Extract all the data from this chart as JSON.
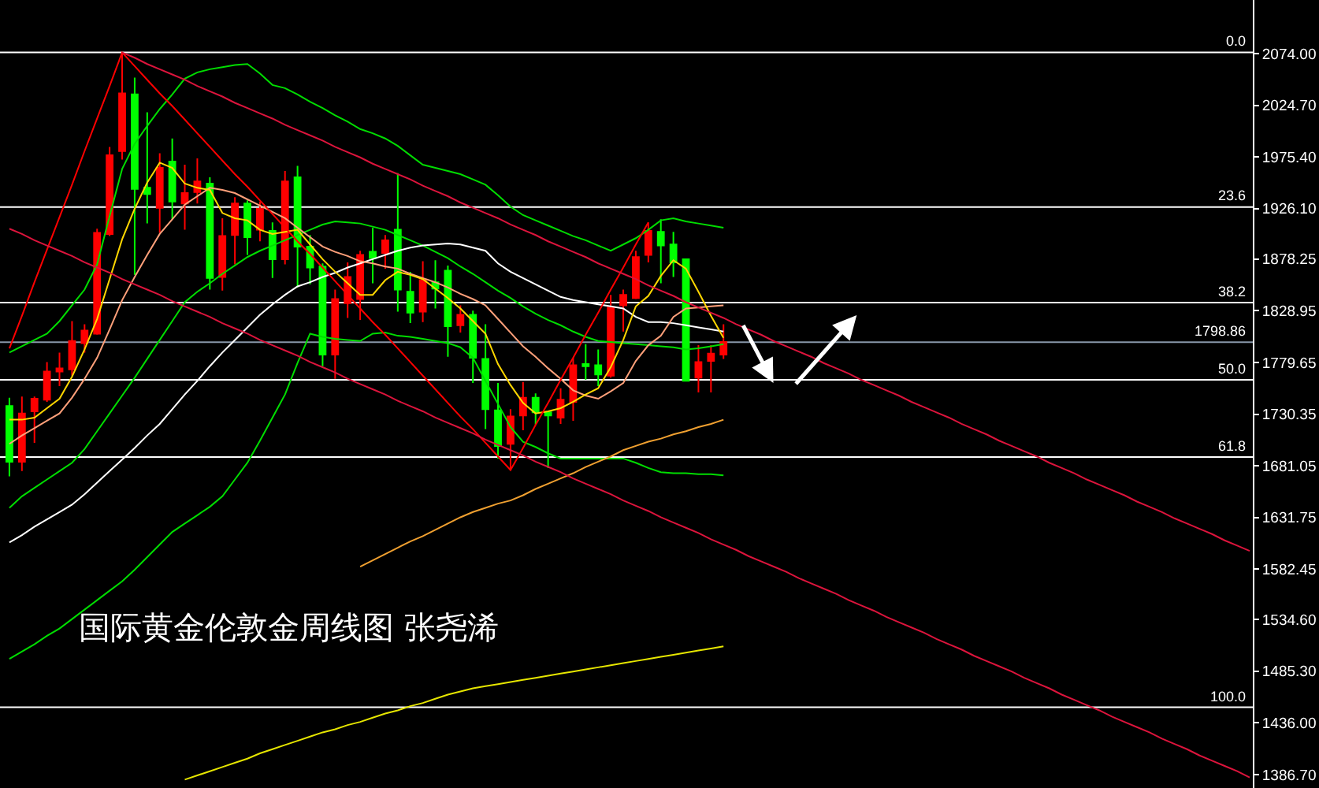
{
  "chart_data": {
    "type": "candlestick",
    "annotations": [
      "国际黄金伦敦金周线图 张尧浠",
      {
        "text": "0.0",
        "y": 2075
      },
      {
        "text": "23.6",
        "y": 1927.7
      },
      {
        "text": "38.2",
        "y": 1836.6
      },
      {
        "text": "50.0",
        "y": 1763
      },
      {
        "text": "61.8",
        "y": 1689.4
      },
      {
        "text": "100.0",
        "y": 1451
      }
    ],
    "categories": [
      null,
      null,
      null,
      null,
      null,
      null,
      null,
      null,
      null,
      null,
      null,
      null,
      null,
      null,
      null,
      null,
      null,
      null,
      null,
      null,
      null,
      null,
      null,
      null,
      null,
      null,
      null,
      null,
      null,
      null,
      null,
      null,
      null,
      null,
      null,
      null,
      null,
      null,
      null,
      null,
      null,
      null,
      null,
      null,
      null,
      null,
      null,
      null,
      null,
      null,
      null,
      null,
      null,
      null,
      null,
      null,
      null,
      null,
      null,
      null,
      null,
      null,
      null,
      null,
      null,
      null,
      null,
      null,
      null,
      null,
      null,
      null,
      null,
      null,
      null,
      null,
      null,
      null,
      null,
      null,
      null,
      null,
      null,
      null,
      null,
      null,
      null,
      null,
      null,
      null,
      null,
      null,
      null,
      null,
      null,
      null,
      null,
      null,
      null,
      null
    ],
    "ohlc": [
      [
        1738,
        1746,
        1671,
        1685
      ],
      [
        1685,
        1747,
        1676,
        1731
      ],
      [
        1733,
        1747,
        1703,
        1745
      ],
      [
        1744,
        1780,
        1742,
        1771
      ],
      [
        1771,
        1789,
        1757,
        1774
      ],
      [
        1773,
        1819,
        1767,
        1800
      ],
      [
        1798,
        1816,
        1789,
        1810
      ],
      [
        1807,
        1907,
        1806,
        1903
      ],
      [
        1902,
        1985,
        1900,
        1977
      ],
      [
        1981,
        2075,
        1973,
        2036
      ],
      [
        2035,
        2051,
        1863,
        1945
      ],
      [
        1946,
        2018,
        1912,
        1940
      ],
      [
        1927,
        1979,
        1903,
        1965
      ],
      [
        1971,
        1993,
        1916,
        1933
      ],
      [
        1931,
        1968,
        1906,
        1941
      ],
      [
        1942,
        1974,
        1931,
        1952
      ],
      [
        1950,
        1956,
        1849,
        1860
      ],
      [
        1861,
        1917,
        1848,
        1900
      ],
      [
        1901,
        1937,
        1873,
        1931
      ],
      [
        1931,
        1934,
        1882,
        1899
      ],
      [
        1906,
        1933,
        1895,
        1926
      ],
      [
        1905,
        1913,
        1860,
        1878
      ],
      [
        1878,
        1962,
        1873,
        1952
      ],
      [
        1956,
        1967,
        1851,
        1890
      ],
      [
        1890,
        1901,
        1854,
        1870
      ],
      [
        1871,
        1874,
        1776,
        1787
      ],
      [
        1787,
        1849,
        1764,
        1840
      ],
      [
        1836,
        1875,
        1822,
        1861
      ],
      [
        1840,
        1886,
        1820,
        1882
      ],
      [
        1885,
        1908,
        1855,
        1879
      ],
      [
        1884,
        1901,
        1869,
        1896
      ],
      [
        1906,
        1960,
        1828,
        1849
      ],
      [
        1847,
        1866,
        1817,
        1827
      ],
      [
        1828,
        1876,
        1818,
        1858
      ],
      [
        1856,
        1877,
        1831,
        1850
      ],
      [
        1867,
        1872,
        1785,
        1814
      ],
      [
        1815,
        1834,
        1808,
        1825
      ],
      [
        1825,
        1829,
        1760,
        1784
      ],
      [
        1783,
        1816,
        1716,
        1735
      ],
      [
        1734,
        1760,
        1688,
        1700
      ],
      [
        1702,
        1735,
        1677,
        1728
      ],
      [
        1729,
        1761,
        1715,
        1746
      ],
      [
        1746,
        1750,
        1720,
        1732
      ],
      [
        1732,
        1733,
        1679,
        1729
      ],
      [
        1727,
        1755,
        1721,
        1744
      ],
      [
        1742,
        1784,
        1724,
        1777
      ],
      [
        1778,
        1797,
        1763,
        1776
      ],
      [
        1777,
        1792,
        1757,
        1768
      ],
      [
        1767,
        1844,
        1765,
        1832
      ],
      [
        1834,
        1849,
        1809,
        1844
      ],
      [
        1841,
        1886,
        1840,
        1880
      ],
      [
        1882,
        1913,
        1875,
        1905
      ],
      [
        1904,
        1916,
        1855,
        1891
      ],
      [
        1892,
        1904,
        1861,
        1875
      ],
      [
        1878,
        1878,
        1762,
        1762
      ],
      [
        1765,
        1796,
        1751,
        1780
      ],
      [
        1781,
        1796,
        1751,
        1788
      ],
      [
        1787,
        1816,
        1783,
        1799
      ],
      null,
      null,
      null,
      null,
      null,
      null,
      null,
      null,
      null,
      null,
      null,
      null,
      null,
      null,
      null,
      null,
      null,
      null,
      null,
      null,
      null,
      null,
      null,
      null,
      null,
      null,
      null,
      null,
      null,
      null,
      null,
      null,
      null,
      null,
      null,
      null,
      null,
      null,
      null,
      null,
      null,
      null
    ],
    "colors": [
      "#00ff00",
      "#ff0000",
      "#ff0000",
      "#ff0000",
      "#ff0000",
      "#ff0000",
      "#ff0000",
      "#ff0000",
      "#ff0000",
      "#ff0000",
      "#00ff00",
      "#00ff00",
      "#ff0000",
      "#00ff00",
      "#ff0000",
      "#ff0000",
      "#00ff00",
      "#ff0000",
      "#ff0000",
      "#00ff00",
      "#ff0000",
      "#00ff00",
      "#ff0000",
      "#00ff00",
      "#00ff00",
      "#00ff00",
      "#ff0000",
      "#ff0000",
      "#ff0000",
      "#00ff00",
      "#ff0000",
      "#00ff00",
      "#00ff00",
      "#ff0000",
      "#00ff00",
      "#00ff00",
      "#ff0000",
      "#00ff00",
      "#00ff00",
      "#00ff00",
      "#ff0000",
      "#ff0000",
      "#00ff00",
      "#00ff00",
      "#ff0000",
      "#ff0000",
      "#00ff00",
      "#00ff00",
      "#ff0000",
      "#ff0000",
      "#ff0000",
      "#ff0000",
      "#00ff00",
      "#00ff00",
      "#00ff00",
      "#ff0000",
      "#ff0000",
      "#ff0000",
      null,
      null,
      null,
      null,
      null,
      null,
      null,
      null,
      null,
      null,
      null,
      null,
      null,
      null,
      null,
      null,
      null,
      null,
      null,
      null,
      null,
      null,
      null,
      null,
      null,
      null,
      null,
      null,
      null,
      null,
      null,
      null,
      null,
      null,
      null,
      null,
      null,
      null,
      null,
      null,
      null,
      null
    ],
    "series": [
      {
        "type": "line",
        "color": "#00dd00",
        "values": [
          1789,
          1795,
          1801,
          1807,
          1819,
          1834,
          1849,
          1873,
          1919,
          1964,
          1988,
          2005,
          2021,
          2035,
          2050,
          2056,
          2059,
          2061,
          2063,
          2064,
          2055,
          2044,
          2041,
          2035,
          2028,
          2022,
          2015,
          2009,
          2002,
          1998,
          1993,
          1986,
          1977,
          1968,
          1965,
          1962,
          1959,
          1954,
          1949,
          1939,
          1928,
          1920,
          1915,
          1910,
          1905,
          1900,
          1896,
          1891,
          1886,
          1892,
          1898,
          1906,
          1915,
          1917,
          1914,
          1912,
          1910,
          1908,
          null,
          null,
          null,
          null,
          null,
          null,
          null,
          null,
          null,
          null,
          null,
          null,
          null,
          null,
          null,
          null,
          null,
          null,
          null,
          null,
          null,
          null,
          null,
          null,
          null,
          null,
          null,
          null,
          null,
          null,
          null,
          null,
          null,
          null,
          null,
          null,
          null,
          null,
          null,
          null,
          null,
          null
        ]
      },
      {
        "type": "line",
        "color": "#00dd00",
        "values": [
          1641,
          1652,
          1660,
          1668,
          1676,
          1684,
          1697,
          1714,
          1731,
          1748,
          1765,
          1783,
          1801,
          1819,
          1837,
          1847,
          1855,
          1864,
          1872,
          1880,
          1886,
          1891,
          1896,
          1901,
          1906,
          1911,
          1914,
          1913,
          1912,
          1909,
          1906,
          1901,
          1896,
          1891,
          1885,
          1879,
          1871,
          1864,
          1856,
          1848,
          1841,
          1833,
          1826,
          1820,
          1815,
          1809,
          1804,
          1800,
          1799,
          1798,
          1797,
          1796,
          1795,
          1794,
          1792,
          1793,
          1795,
          1797,
          null,
          null,
          null,
          null,
          null,
          null,
          null,
          null,
          null,
          null,
          null,
          null,
          null,
          null,
          null,
          null,
          null,
          null,
          null,
          null,
          null,
          null,
          null,
          null,
          null,
          null,
          null,
          null,
          null,
          null,
          null,
          null,
          null,
          null,
          null,
          null,
          null,
          null,
          null,
          null,
          null,
          null
        ]
      },
      {
        "type": "line",
        "color": "#00dd00",
        "values": [
          1497,
          1504,
          1511,
          1519,
          1526,
          1535,
          1544,
          1553,
          1562,
          1571,
          1582,
          1594,
          1606,
          1618,
          1626,
          1634,
          1642,
          1652,
          1668,
          1684,
          1705,
          1727,
          1749,
          1779,
          1807,
          1804,
          1802,
          1801,
          1800,
          1807,
          1808,
          1805,
          1804,
          1802,
          1800,
          1798,
          1794,
          1784,
          1762,
          1740,
          1718,
          1704,
          1699,
          1693,
          1688,
          1688,
          1688,
          1688,
          1688,
          1688,
          1684,
          1679,
          1675,
          1674,
          1674,
          1673,
          1673,
          1672,
          null,
          null,
          null,
          null,
          null,
          null,
          null,
          null,
          null,
          null,
          null,
          null,
          null,
          null,
          null,
          null,
          null,
          null,
          null,
          null,
          null,
          null,
          null,
          null,
          null,
          null,
          null,
          null,
          null,
          null,
          null,
          null,
          null,
          null,
          null,
          null,
          null,
          null,
          null,
          null,
          null,
          null
        ]
      },
      {
        "type": "line",
        "color": "#ffffff",
        "values": [
          1608,
          1615,
          1623,
          1630,
          1637,
          1644,
          1654,
          1665,
          1676,
          1687,
          1698,
          1710,
          1721,
          1735,
          1749,
          1762,
          1776,
          1789,
          1801,
          1813,
          1825,
          1835,
          1844,
          1852,
          1856,
          1861,
          1865,
          1870,
          1874,
          1878,
          1882,
          1886,
          1889,
          1891,
          1892,
          1893,
          1892,
          1889,
          1886,
          1874,
          1866,
          1860,
          1854,
          1848,
          1842,
          1839,
          1837,
          1835,
          1833,
          1831,
          1823,
          1818,
          1818,
          1817,
          1815,
          1813,
          1811,
          1809,
          null,
          null,
          null,
          null,
          null,
          null,
          null,
          null,
          null,
          null,
          null,
          null,
          null,
          null,
          null,
          null,
          null,
          null,
          null,
          null,
          null,
          null,
          null,
          null,
          null,
          null,
          null,
          null,
          null,
          null,
          null,
          null,
          null,
          null,
          null,
          null,
          null,
          null,
          null,
          null,
          null,
          null
        ]
      },
      {
        "type": "line",
        "color": "#ffa07a",
        "values": [
          1702,
          1710,
          1717,
          1724,
          1731,
          1746,
          1764,
          1784,
          1811,
          1839,
          1861,
          1882,
          1902,
          1916,
          1930,
          1938,
          1946,
          1944,
          1941,
          1935,
          1929,
          1923,
          1917,
          1908,
          1899,
          1890,
          1885,
          1881,
          1876,
          1874,
          1871,
          1869,
          1864,
          1860,
          1856,
          1851,
          1845,
          1840,
          1834,
          1821,
          1808,
          1795,
          1785,
          1774,
          1764,
          1753,
          1748,
          1745,
          1752,
          1760,
          1781,
          1796,
          1805,
          1823,
          1831,
          1832,
          1833,
          1834,
          null,
          null,
          null,
          null,
          null,
          null,
          null,
          null,
          null,
          null,
          null,
          null,
          null,
          null,
          null,
          null,
          null,
          null,
          null,
          null,
          null,
          null,
          null,
          null,
          null,
          null,
          null,
          null,
          null,
          null,
          null,
          null,
          null,
          null,
          null,
          null,
          null,
          null,
          null,
          null,
          null,
          null
        ]
      },
      {
        "type": "line",
        "color": "#ffd700",
        "values": [
          1725,
          1725,
          1727,
          1736,
          1745,
          1766,
          1792,
          1821,
          1859,
          1897,
          1926,
          1951,
          1970,
          1965,
          1950,
          1946,
          1944,
          1922,
          1917,
          1915,
          1906,
          1902,
          1904,
          1906,
          1892,
          1878,
          1866,
          1855,
          1844,
          1844,
          1858,
          1866,
          1863,
          1859,
          1850,
          1841,
          1831,
          1819,
          1807,
          1778,
          1758,
          1741,
          1731,
          1733,
          1736,
          1742,
          1749,
          1755,
          1775,
          1801,
          1833,
          1843,
          1862,
          1877,
          1869,
          1847,
          1824,
          1803,
          null,
          null,
          null,
          null,
          null,
          null,
          null,
          null,
          null,
          null,
          null,
          null,
          null,
          null,
          null,
          null,
          null,
          null,
          null,
          null,
          null,
          null,
          null,
          null,
          null,
          null,
          null,
          null,
          null,
          null,
          null,
          null,
          null,
          null,
          null,
          null,
          null,
          null,
          null,
          null,
          null,
          null
        ]
      },
      {
        "type": "line",
        "color": "#f0a030",
        "values": [
          null,
          null,
          null,
          null,
          null,
          null,
          null,
          null,
          null,
          null,
          null,
          null,
          null,
          null,
          null,
          null,
          null,
          null,
          null,
          null,
          null,
          null,
          null,
          null,
          null,
          null,
          null,
          null,
          1585,
          1591,
          1597,
          1603,
          1609,
          1614,
          1620,
          1626,
          1632,
          1637,
          1641,
          1645,
          1648,
          1653,
          1659,
          1664,
          1669,
          1674,
          1680,
          1685,
          1690,
          1696,
          1700,
          1704,
          1707,
          1711,
          1714,
          1718,
          1721,
          1725,
          null,
          null,
          null,
          null,
          null,
          null,
          null,
          null,
          null,
          null,
          null,
          null,
          null,
          null,
          null,
          null,
          null,
          null,
          null,
          null,
          null,
          null,
          null,
          null,
          null,
          null,
          null,
          null,
          null,
          null,
          null,
          null,
          null,
          null,
          null,
          null,
          null,
          null,
          null,
          null,
          null,
          null
        ]
      },
      {
        "type": "line",
        "color": "#e6e600",
        "values": [
          null,
          null,
          null,
          null,
          null,
          null,
          null,
          null,
          null,
          null,
          null,
          null,
          null,
          null,
          1382,
          1386,
          1390,
          1394,
          1398,
          1402,
          1407,
          1411,
          1415,
          1419,
          1423,
          1427,
          1430,
          1434,
          1437,
          1441,
          1445,
          1448,
          1452,
          1455,
          1459,
          1463,
          1466,
          1469,
          1471,
          1473,
          1475,
          1477,
          1479,
          1481,
          1483,
          1485,
          1487,
          1489,
          1491,
          1493,
          1495,
          1497,
          1499,
          1501,
          1503,
          1505,
          1507,
          1509,
          null,
          null,
          null,
          null,
          null,
          null,
          null,
          null,
          null,
          null,
          null,
          null,
          null,
          null,
          null,
          null,
          null,
          null,
          null,
          null,
          null,
          null,
          null,
          null,
          null,
          null,
          null,
          null,
          null,
          null,
          null,
          null,
          null,
          null,
          null,
          null,
          null,
          null,
          null,
          null,
          null,
          null
        ]
      },
      {
        "type": "line",
        "color": "#ff0000",
        "values": [
          1793,
          1824,
          1856,
          1887,
          1918,
          1949,
          1981,
          2012,
          2043,
          2075,
          2062,
          2049,
          2036,
          2024,
          2011,
          1998,
          1985,
          1972,
          1959,
          1947,
          1934,
          1921,
          1908,
          1895,
          1883,
          1870,
          1857,
          1844,
          1831,
          1818,
          1806,
          1793,
          1780,
          1767,
          1754,
          1741,
          1728,
          1716,
          1703,
          1690,
          1677,
          1698,
          1720,
          1741,
          1763,
          1784,
          1806,
          1827,
          1849,
          1870,
          1892,
          1913,
          null,
          null,
          null,
          null,
          null,
          null,
          null,
          null,
          null,
          null,
          null,
          null,
          null,
          null,
          null,
          null,
          null,
          null,
          null,
          null,
          null,
          null,
          null,
          null,
          null,
          null,
          null,
          null,
          null,
          null,
          null,
          null,
          null,
          null,
          null,
          null,
          null,
          null,
          null,
          null,
          null,
          null,
          null,
          null,
          null,
          null,
          null,
          null
        ]
      },
      {
        "type": "line",
        "color": "#dc143c",
        "values": [
          null,
          null,
          null,
          null,
          null,
          null,
          null,
          null,
          null,
          2075,
          2070,
          2064,
          2059,
          2054,
          2049,
          2043,
          2038,
          2033,
          2027,
          2022,
          2017,
          2012,
          2006,
          2001,
          1996,
          1991,
          1985,
          1980,
          1975,
          1969,
          1964,
          1959,
          1954,
          1948,
          1943,
          1938,
          1932,
          1927,
          1922,
          1917,
          1911,
          1906,
          1901,
          1895,
          1890,
          1885,
          1880,
          1874,
          1869,
          1864,
          1859,
          1853,
          1848,
          1843,
          1837,
          1832,
          1827,
          1822,
          1816,
          1811,
          1806,
          1800,
          1795,
          1790,
          1785,
          1779,
          1774,
          1769,
          1763,
          1758,
          1753,
          1748,
          1742,
          1737,
          1732,
          1727,
          1721,
          1716,
          1711,
          1705,
          1700,
          1695,
          1690,
          1684,
          1679,
          1674,
          1668,
          1663,
          1658,
          1653,
          1647,
          1642,
          1637,
          1631,
          1626,
          1621,
          1616,
          1610,
          1605,
          1600
        ]
      },
      {
        "type": "line",
        "color": "#dc143c",
        "values": [
          1907,
          1902,
          1896,
          1891,
          1886,
          1881,
          1875,
          1870,
          1865,
          1859,
          1854,
          1849,
          1844,
          1838,
          1833,
          1828,
          1823,
          1817,
          1812,
          1807,
          1801,
          1796,
          1791,
          1786,
          1780,
          1775,
          1770,
          1764,
          1759,
          1754,
          1749,
          1743,
          1738,
          1733,
          1727,
          1722,
          1717,
          1712,
          1706,
          1701,
          1696,
          1691,
          1685,
          1680,
          1675,
          1669,
          1664,
          1659,
          1654,
          1648,
          1643,
          1638,
          1632,
          1627,
          1622,
          1617,
          1611,
          1606,
          1601,
          1595,
          1590,
          1585,
          1580,
          1574,
          1569,
          1564,
          1559,
          1553,
          1548,
          1543,
          1537,
          1532,
          1527,
          1522,
          1516,
          1511,
          1506,
          1500,
          1495,
          1490,
          1485,
          1479,
          1474,
          1469,
          1463,
          1458,
          1453,
          1448,
          1442,
          1437,
          1432,
          1427,
          1421,
          1416,
          1411,
          1405,
          1400,
          1395,
          1390,
          1384
        ]
      }
    ],
    "ylim": [
      1374,
      2125
    ],
    "yticks": [
      {
        "value": 1386.7,
        "label": "1386.70"
      },
      {
        "value": 1436,
        "label": "1436.00"
      },
      {
        "value": 1485.3,
        "label": "1485.30"
      },
      {
        "value": 1534.6,
        "label": "1534.60"
      },
      {
        "value": 1582.45,
        "label": "1582.45"
      },
      {
        "value": 1631.75,
        "label": "1631.75"
      },
      {
        "value": 1681.05,
        "label": "1681.05"
      },
      {
        "value": 1730.35,
        "label": "1730.35"
      },
      {
        "value": 1779.65,
        "label": "1779.65"
      },
      {
        "value": 1828.95,
        "label": "1828.95"
      },
      {
        "value": 1878.25,
        "label": "1878.25"
      },
      {
        "value": 1926.1,
        "label": "1926.10"
      },
      {
        "value": 1975.4,
        "label": "1975.40"
      },
      {
        "value": 2024.7,
        "label": "2024.70"
      },
      {
        "value": 2074,
        "label": "2074.00"
      }
    ],
    "ref_lines": [
      {
        "axis": "y",
        "value": 2075,
        "color": "#ffffff"
      },
      {
        "axis": "y",
        "value": 1927.7,
        "color": "#ffffff"
      },
      {
        "axis": "y",
        "value": 1836.6,
        "color": "#ffffff"
      },
      {
        "axis": "y",
        "value": 1763,
        "color": "#ffffff"
      },
      {
        "axis": "y",
        "value": 1689.4,
        "color": "#ffffff"
      },
      {
        "axis": "y",
        "value": 1451,
        "color": "#ffffff"
      },
      {
        "axis": "y",
        "value": 1798.86,
        "label": "1798.86",
        "color": "#8796a8"
      }
    ],
    "tick_labels": "y"
  }
}
